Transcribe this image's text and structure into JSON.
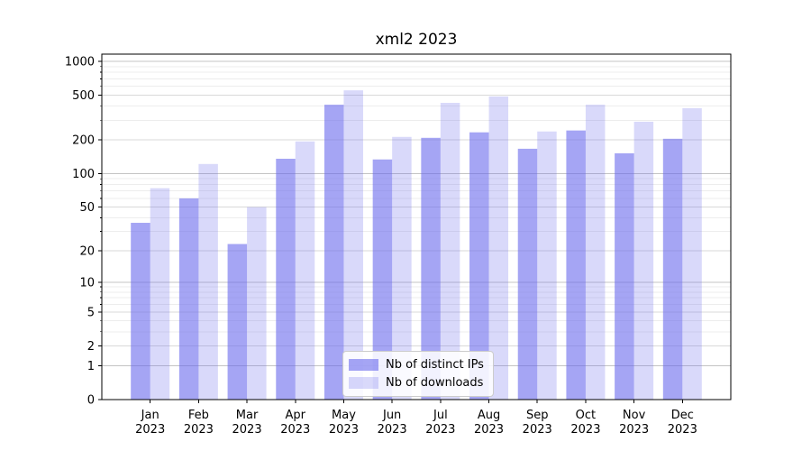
{
  "chart_data": {
    "type": "bar",
    "title": "xml2 2023",
    "categories": [
      "Jan",
      "Feb",
      "Mar",
      "Apr",
      "May",
      "Jun",
      "Jul",
      "Aug",
      "Sep",
      "Oct",
      "Nov",
      "Dec"
    ],
    "year_label": "2023",
    "series": [
      {
        "name": "Nb of distinct IPs",
        "values": [
          36,
          60,
          23,
          136,
          412,
          134,
          209,
          234,
          167,
          243,
          152,
          205
        ],
        "color_hex": "#6969ed",
        "alpha": 0.6
      },
      {
        "name": "Nb of downloads",
        "values": [
          74,
          122,
          50,
          194,
          553,
          213,
          428,
          488,
          238,
          412,
          291,
          384
        ],
        "color_hex": "#6969ed",
        "alpha": 0.25
      }
    ],
    "xlabel": "",
    "ylabel": "",
    "yscale": "log1p",
    "yticks": [
      0,
      1,
      2,
      5,
      10,
      20,
      50,
      100,
      200,
      500,
      1000
    ],
    "ylim": [
      0,
      1160
    ],
    "grid": true,
    "legend_position": "lower center",
    "grid_color_decade": "#c4c4c4",
    "grid_color_major": "#d9d9d9",
    "grid_color_minor": "#ededed"
  }
}
